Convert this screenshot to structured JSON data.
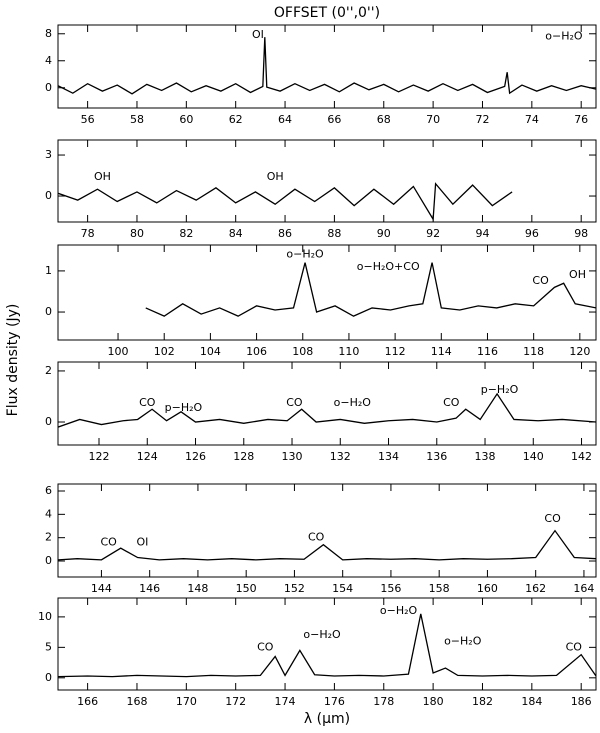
{
  "title": "OFFSET (0'',0'')",
  "y_label": "Flux density (Jy)",
  "x_label": "λ (μm)",
  "chart_data": [
    {
      "type": "line",
      "color": "#000000",
      "xlim": [
        54.8,
        76.6
      ],
      "ylim": [
        -3,
        9.3
      ],
      "xticks": [
        56,
        58,
        60,
        62,
        64,
        66,
        68,
        70,
        72,
        74,
        76
      ],
      "yticks": [
        0,
        4,
        8
      ],
      "x": [
        54.8,
        55.4,
        56.0,
        56.6,
        57.2,
        57.8,
        58.4,
        59.0,
        59.6,
        60.2,
        60.8,
        61.4,
        62.0,
        62.6,
        63.1,
        63.18,
        63.26,
        63.8,
        64.4,
        65.0,
        65.6,
        66.2,
        66.8,
        67.4,
        68.0,
        68.6,
        69.2,
        69.8,
        70.4,
        71.0,
        71.6,
        72.2,
        72.9,
        73.0,
        73.1,
        73.6,
        74.2,
        74.8,
        75.4,
        76.0,
        76.6
      ],
      "values": [
        0.3,
        -0.8,
        0.6,
        -0.5,
        0.4,
        -0.9,
        0.5,
        -0.4,
        0.7,
        -0.6,
        0.3,
        -0.5,
        0.6,
        -0.7,
        0.2,
        7.5,
        0.1,
        -0.5,
        0.6,
        -0.4,
        0.5,
        -0.6,
        0.7,
        -0.3,
        0.5,
        -0.6,
        0.4,
        -0.5,
        0.6,
        -0.4,
        0.5,
        -0.7,
        0.2,
        2.3,
        -0.8,
        0.4,
        -0.5,
        0.3,
        -0.4,
        0.3,
        -0.2
      ],
      "annotations": [
        {
          "text": "OI",
          "x": 62.9,
          "y": 7.8
        },
        {
          "text": "o−H₂O",
          "x": 75.3,
          "y": 7.6
        }
      ]
    },
    {
      "type": "line",
      "color": "#000000",
      "xlim": [
        76.8,
        98.6
      ],
      "ylim": [
        -1.9,
        4.1
      ],
      "xticks": [
        78,
        80,
        82,
        84,
        86,
        88,
        90,
        92,
        94,
        96,
        98
      ],
      "yticks": [
        0,
        3
      ],
      "x": [
        76.8,
        77.6,
        78.4,
        79.2,
        80.0,
        80.8,
        81.6,
        82.4,
        83.2,
        84.0,
        84.8,
        85.6,
        86.4,
        87.2,
        88.0,
        88.8,
        89.6,
        90.4,
        91.2,
        92.0,
        92.1,
        92.8,
        93.6,
        94.4,
        95.2
      ],
      "values": [
        0.2,
        -0.3,
        0.5,
        -0.4,
        0.3,
        -0.5,
        0.4,
        -0.3,
        0.6,
        -0.5,
        0.3,
        -0.6,
        0.5,
        -0.4,
        0.6,
        -0.7,
        0.5,
        -0.6,
        0.7,
        -1.7,
        0.9,
        -0.6,
        0.8,
        -0.7,
        0.3
      ],
      "annotations": [
        {
          "text": "OH",
          "x": 78.6,
          "y": 1.4
        },
        {
          "text": "OH",
          "x": 85.6,
          "y": 1.4
        }
      ]
    },
    {
      "type": "line",
      "color": "#000000",
      "xlim": [
        97.4,
        120.7
      ],
      "ylim": [
        -0.68,
        1.63
      ],
      "xticks": [
        100,
        102,
        104,
        106,
        108,
        110,
        112,
        114,
        116,
        118,
        120
      ],
      "yticks": [
        0,
        1
      ],
      "x": [
        101.2,
        102.0,
        102.8,
        103.6,
        104.4,
        105.2,
        106.0,
        106.8,
        107.6,
        108.1,
        108.6,
        109.4,
        110.2,
        111.0,
        111.8,
        112.6,
        113.2,
        113.6,
        114.0,
        114.8,
        115.6,
        116.4,
        117.2,
        118.0,
        118.9,
        119.3,
        119.8,
        120.7
      ],
      "values": [
        0.1,
        -0.1,
        0.2,
        -0.05,
        0.1,
        -0.1,
        0.15,
        0.05,
        0.1,
        1.2,
        0.0,
        0.15,
        -0.1,
        0.1,
        0.05,
        0.15,
        0.2,
        1.2,
        0.1,
        0.05,
        0.15,
        0.1,
        0.2,
        0.15,
        0.6,
        0.7,
        0.2,
        0.1
      ],
      "annotations": [
        {
          "text": "o−H₂O",
          "x": 108.1,
          "y": 1.4
        },
        {
          "text": "o−H₂O+CO",
          "x": 111.7,
          "y": 1.1
        },
        {
          "text": "CO",
          "x": 118.3,
          "y": 0.75
        },
        {
          "text": "OH",
          "x": 119.9,
          "y": 0.9
        }
      ]
    },
    {
      "type": "line",
      "color": "#000000",
      "xlim": [
        120.3,
        142.6
      ],
      "ylim": [
        -0.9,
        2.35
      ],
      "xticks": [
        122,
        124,
        126,
        128,
        130,
        132,
        134,
        136,
        138,
        140,
        142
      ],
      "yticks": [
        0,
        2
      ],
      "x": [
        120.3,
        121.2,
        122.1,
        123.0,
        123.6,
        124.2,
        124.8,
        125.4,
        126.0,
        127.0,
        128.0,
        129.0,
        129.8,
        130.4,
        131.0,
        132.0,
        133.0,
        134.0,
        135.0,
        136.0,
        136.8,
        137.2,
        137.8,
        138.5,
        139.2,
        140.2,
        141.2,
        142.6
      ],
      "values": [
        -0.2,
        0.1,
        -0.1,
        0.05,
        0.1,
        0.5,
        0.05,
        0.4,
        0.0,
        0.1,
        -0.05,
        0.1,
        0.05,
        0.5,
        0.0,
        0.1,
        -0.05,
        0.05,
        0.1,
        0.0,
        0.15,
        0.5,
        0.1,
        1.1,
        0.1,
        0.05,
        0.1,
        0.0
      ],
      "annotations": [
        {
          "text": "CO",
          "x": 124.0,
          "y": 0.75
        },
        {
          "text": "p−H₂O",
          "x": 125.5,
          "y": 0.55
        },
        {
          "text": "CO",
          "x": 130.1,
          "y": 0.75
        },
        {
          "text": "o−H₂O",
          "x": 132.5,
          "y": 0.75
        },
        {
          "text": "CO",
          "x": 136.6,
          "y": 0.75
        },
        {
          "text": "p−H₂O",
          "x": 138.6,
          "y": 1.25
        }
      ]
    },
    {
      "type": "line",
      "color": "#000000",
      "xlim": [
        142.2,
        164.5
      ],
      "ylim": [
        -1.37,
        6.6
      ],
      "xticks": [
        144,
        146,
        148,
        150,
        152,
        154,
        156,
        158,
        160,
        162,
        164
      ],
      "yticks": [
        0,
        2,
        4,
        6
      ],
      "x": [
        142.2,
        143.0,
        144.0,
        144.8,
        145.5,
        146.4,
        147.4,
        148.4,
        149.4,
        150.4,
        151.4,
        152.4,
        153.2,
        154.0,
        155.0,
        156.0,
        157.0,
        158.0,
        159.0,
        160.0,
        161.0,
        162.0,
        162.8,
        163.6,
        164.5
      ],
      "values": [
        0.1,
        0.2,
        0.1,
        1.1,
        0.3,
        0.1,
        0.2,
        0.1,
        0.2,
        0.1,
        0.2,
        0.15,
        1.4,
        0.1,
        0.2,
        0.15,
        0.2,
        0.1,
        0.2,
        0.15,
        0.2,
        0.3,
        2.6,
        0.3,
        0.2
      ],
      "annotations": [
        {
          "text": "CO",
          "x": 144.3,
          "y": 1.6
        },
        {
          "text": "OI",
          "x": 145.7,
          "y": 1.6
        },
        {
          "text": "CO",
          "x": 152.9,
          "y": 2.0
        },
        {
          "text": "CO",
          "x": 162.7,
          "y": 3.6
        }
      ]
    },
    {
      "type": "line",
      "color": "#000000",
      "xlim": [
        164.8,
        186.6
      ],
      "ylim": [
        -2,
        13.1
      ],
      "xticks": [
        166,
        168,
        170,
        172,
        174,
        176,
        178,
        180,
        182,
        184,
        186
      ],
      "yticks": [
        0,
        5,
        10
      ],
      "x": [
        164.8,
        166.0,
        167.0,
        168.0,
        169.0,
        170.0,
        171.0,
        172.0,
        173.0,
        173.6,
        174.0,
        174.6,
        175.2,
        176.0,
        177.0,
        178.0,
        179.0,
        179.5,
        180.0,
        180.5,
        181.0,
        182.0,
        183.0,
        184.0,
        185.0,
        186.0,
        186.6
      ],
      "values": [
        0.2,
        0.3,
        0.2,
        0.4,
        0.3,
        0.2,
        0.4,
        0.3,
        0.4,
        3.5,
        0.4,
        4.5,
        0.5,
        0.3,
        0.4,
        0.3,
        0.6,
        10.5,
        0.8,
        1.6,
        0.4,
        0.3,
        0.4,
        0.3,
        0.4,
        3.8,
        0.3
      ],
      "annotations": [
        {
          "text": "CO",
          "x": 173.2,
          "y": 5.0
        },
        {
          "text": "o−H₂O",
          "x": 175.5,
          "y": 7.0
        },
        {
          "text": "o−H₂O",
          "x": 178.6,
          "y": 11.0
        },
        {
          "text": "o−H₂O",
          "x": 181.2,
          "y": 6.0
        },
        {
          "text": "CO",
          "x": 185.7,
          "y": 5.0
        }
      ]
    }
  ]
}
